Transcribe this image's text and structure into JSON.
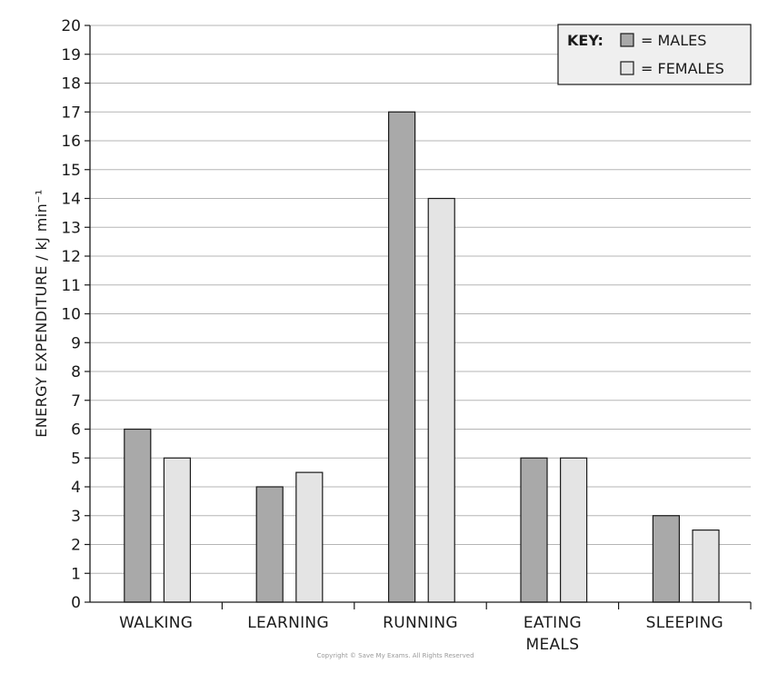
{
  "chart_data": {
    "type": "bar",
    "categories": [
      [
        "WALKING"
      ],
      [
        "LEARNING"
      ],
      [
        "RUNNING"
      ],
      [
        "EATING",
        "MEALS"
      ],
      [
        "SLEEPING"
      ]
    ],
    "series": [
      {
        "name": "MALES",
        "values": [
          6,
          4,
          17,
          5,
          3
        ],
        "color": "#a9a9a9"
      },
      {
        "name": "FEMALES",
        "values": [
          5,
          4.5,
          14,
          5,
          2.5
        ],
        "color": "#e4e4e4"
      }
    ],
    "ylabel": "ENERGY  EXPENDITURE / kJ min⁻¹",
    "xlabel": "",
    "ylim": [
      0,
      20
    ],
    "yticks": [
      0,
      1,
      2,
      3,
      4,
      5,
      6,
      7,
      8,
      9,
      10,
      11,
      12,
      13,
      14,
      15,
      16,
      17,
      18,
      19,
      20
    ],
    "grid": true,
    "legend": {
      "title": "KEY:",
      "entries": [
        "= MALES",
        "= FEMALES"
      ],
      "placement": "top-right"
    }
  },
  "footer": {
    "copyright": "Copyright © Save My Exams. All Rights Reserved"
  },
  "colors": {
    "male_bar": "#a9a9a9",
    "female_bar": "#e4e4e4",
    "grid": "#b5b5b5",
    "axis": "#1a1a1a",
    "legend_bg": "#efefef"
  }
}
